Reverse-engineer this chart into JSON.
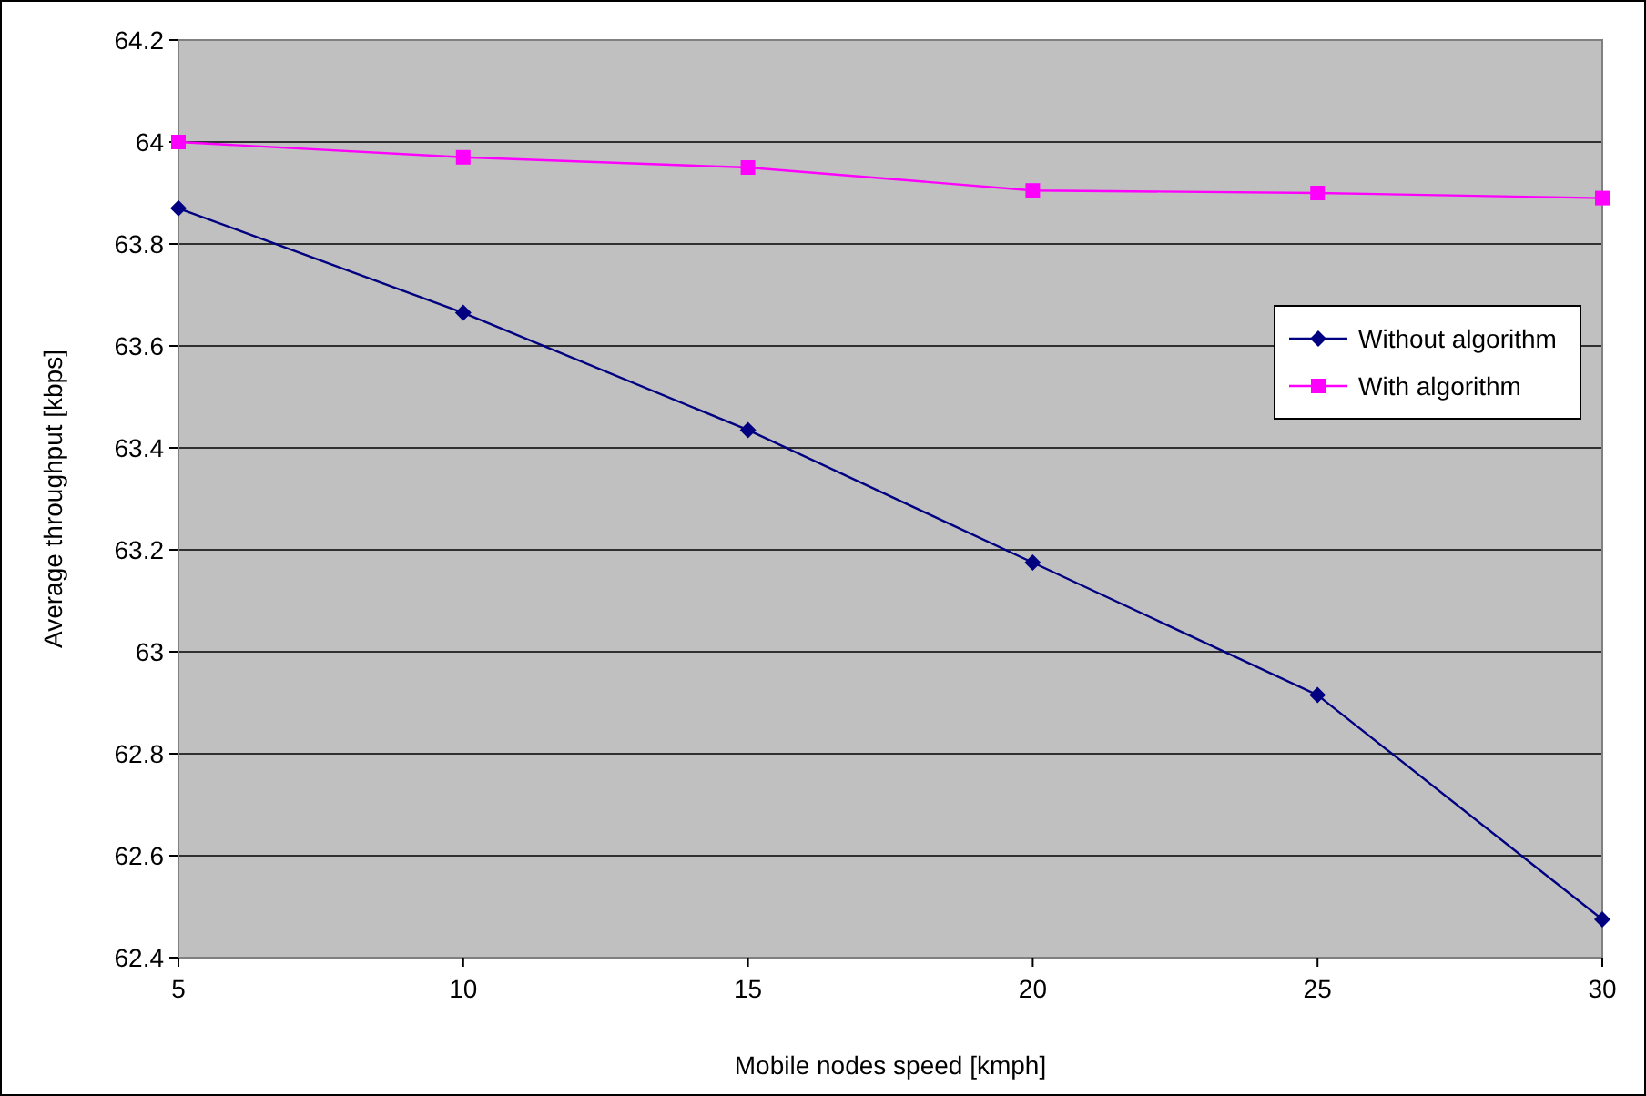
{
  "chart_data": {
    "type": "line",
    "xlabel": "Mobile nodes speed [kmph]",
    "ylabel": "Average throughput [kbps]",
    "x": [
      5,
      10,
      15,
      20,
      25,
      30
    ],
    "series": [
      {
        "name": "Without algorithm",
        "color": "#000080",
        "marker": "diamond",
        "values": [
          63.87,
          63.665,
          63.435,
          63.175,
          62.915,
          62.475
        ]
      },
      {
        "name": "With algorithm",
        "color": "#ff00ff",
        "marker": "square",
        "values": [
          64.0,
          63.97,
          63.95,
          63.905,
          63.9,
          63.89
        ]
      }
    ],
    "xlim": [
      5,
      30
    ],
    "xticks": [
      5,
      10,
      15,
      20,
      25,
      30
    ],
    "ylim": [
      62.4,
      64.2
    ],
    "yticks": [
      62.4,
      62.6,
      62.8,
      63,
      63.2,
      63.4,
      63.6,
      63.8,
      64,
      64.2
    ],
    "grid": "y",
    "legend": "top right",
    "line_style": "solid"
  }
}
